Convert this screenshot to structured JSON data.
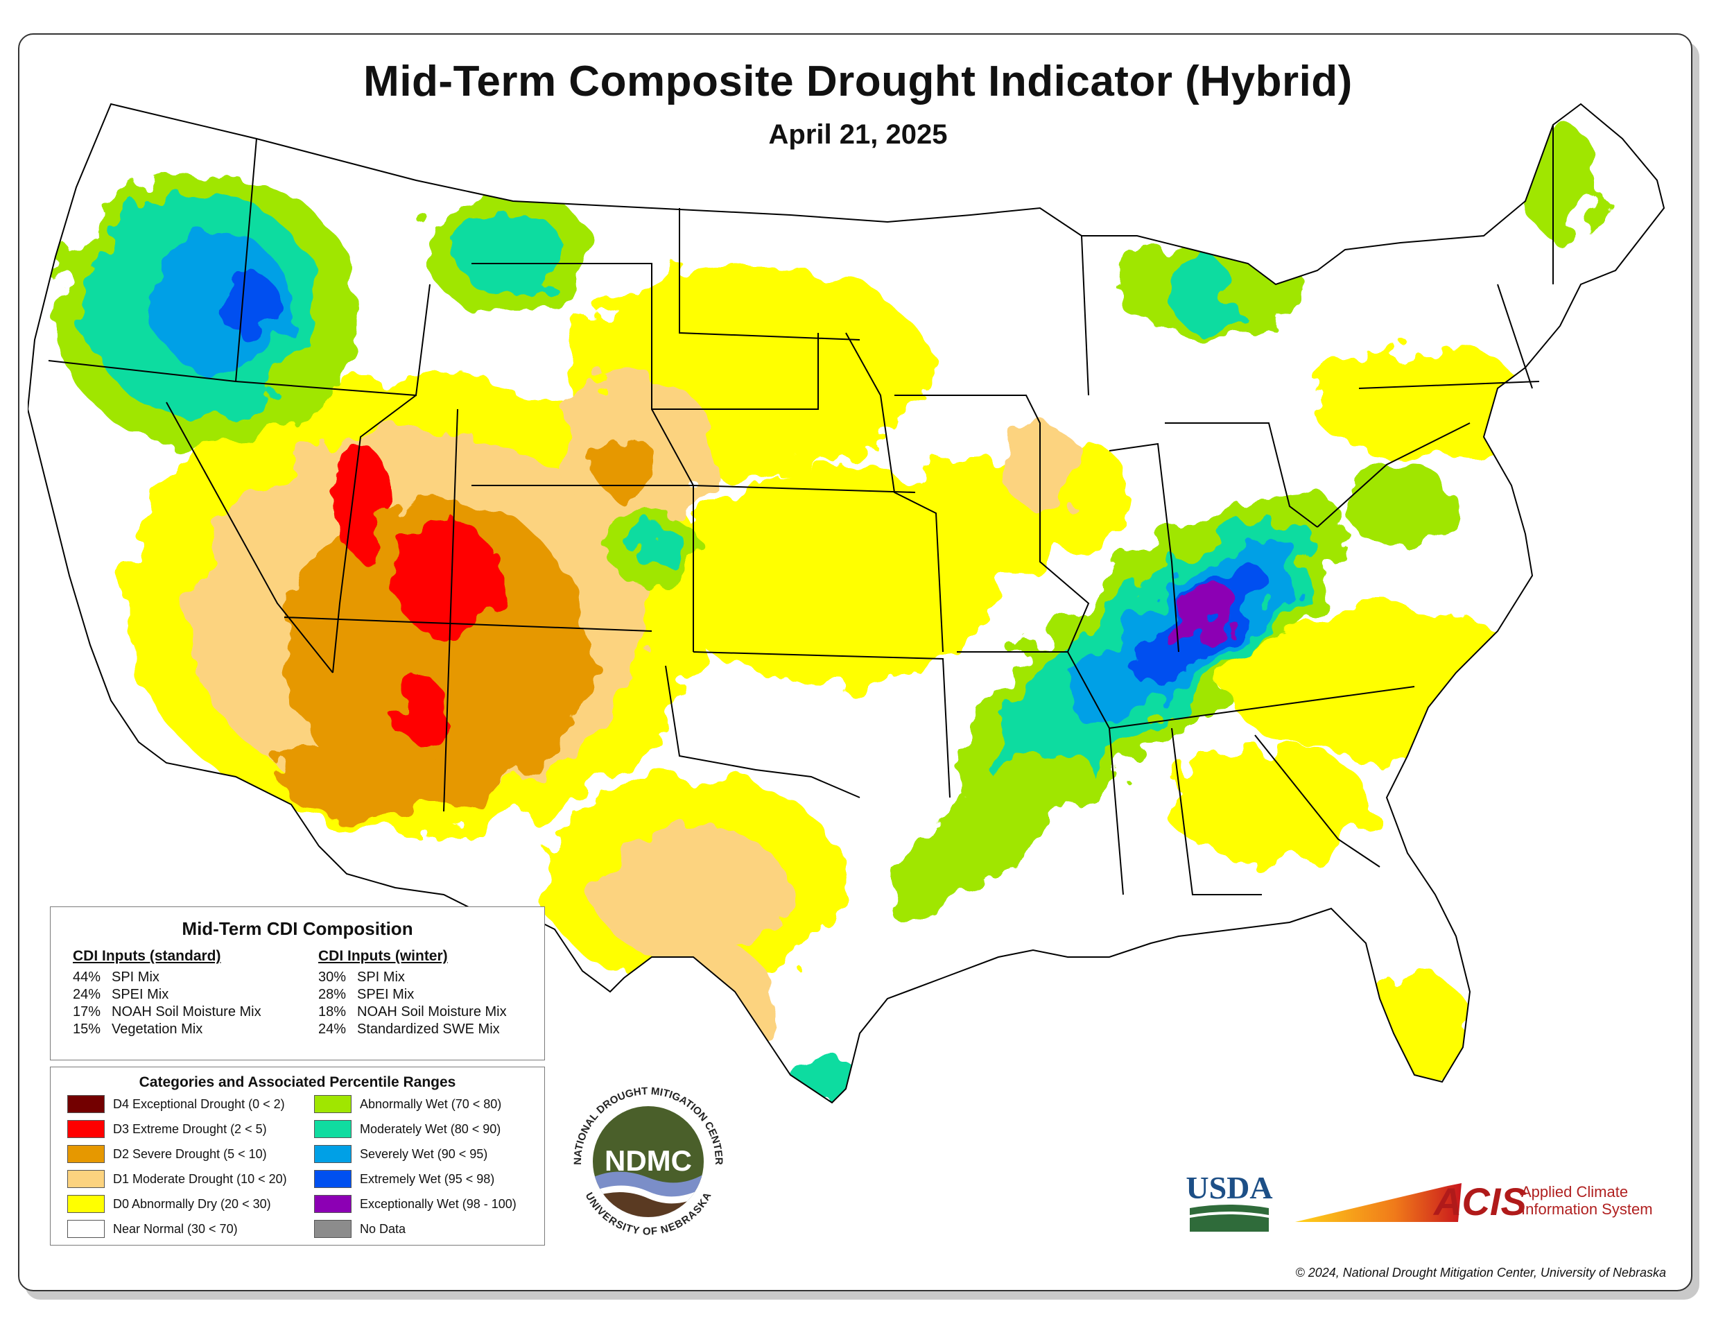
{
  "header": {
    "title": "Mid-Term Composite Drought Indicator (Hybrid)",
    "date": "April 21, 2025"
  },
  "composition": {
    "title": "Mid-Term CDI Composition",
    "standard": {
      "heading": "CDI Inputs (standard)",
      "items": [
        {
          "pct": "44%",
          "label": "SPI Mix"
        },
        {
          "pct": "24%",
          "label": "SPEI Mix"
        },
        {
          "pct": "17%",
          "label": "NOAH Soil Moisture Mix"
        },
        {
          "pct": "15%",
          "label": "Vegetation Mix"
        }
      ]
    },
    "winter": {
      "heading": "CDI Inputs (winter)",
      "items": [
        {
          "pct": "30%",
          "label": "SPI Mix"
        },
        {
          "pct": "28%",
          "label": "SPEI Mix"
        },
        {
          "pct": "18%",
          "label": "NOAH Soil Moisture Mix"
        },
        {
          "pct": "24%",
          "label": "Standardized SWE Mix"
        }
      ]
    }
  },
  "legend": {
    "title": "Categories and Associated Percentile Ranges",
    "left": [
      {
        "label": "D4 Exceptional Drought (0 < 2)",
        "color": "#730000"
      },
      {
        "label": "D3 Extreme Drought (2 < 5)",
        "color": "#ff0000"
      },
      {
        "label": "D2 Severe Drought (5 < 10)",
        "color": "#e69800"
      },
      {
        "label": "D1 Moderate Drought (10 < 20)",
        "color": "#fcd37f"
      },
      {
        "label": "D0 Abnormally Dry (20 < 30)",
        "color": "#ffff00"
      },
      {
        "label": "Near Normal (30 < 70)",
        "color": "#ffffff"
      }
    ],
    "right": [
      {
        "label": "Abnormally Wet (70 < 80)",
        "color": "#a0e600"
      },
      {
        "label": "Moderately Wet (80 < 90)",
        "color": "#10dca0"
      },
      {
        "label": "Severely Wet (90 < 95)",
        "color": "#00a0e6"
      },
      {
        "label": "Extremely Wet (95 < 98)",
        "color": "#0050f0"
      },
      {
        "label": "Exceptionally Wet (98 - 100)",
        "color": "#8c00b4"
      },
      {
        "label": "No Data",
        "color": "#8c8c8c"
      }
    ]
  },
  "logos": {
    "ndmc_abbr": "NDMC",
    "ndmc_arc_top": "NATIONAL DROUGHT MITIGATION CENTER",
    "ndmc_arc_bottom": "UNIVERSITY OF NEBRASKA",
    "usda": "USDA",
    "acis_abbr": "ACIS",
    "acis_line1": "Applied Climate",
    "acis_line2": "Information System"
  },
  "footer": {
    "copyright": "© 2024, National Drought Mitigation Center, University of Nebraska"
  }
}
